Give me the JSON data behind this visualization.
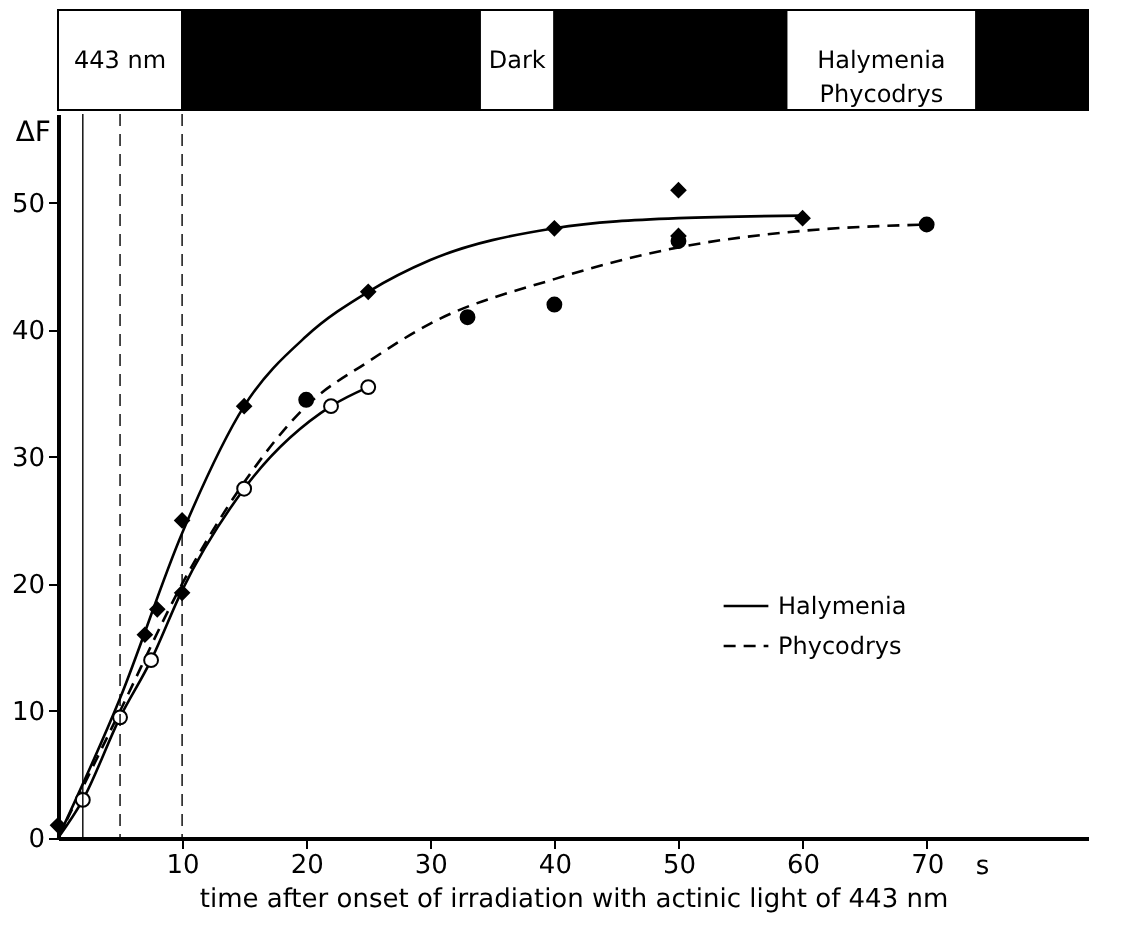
{
  "chart_data": [
    {
      "type": "bar",
      "orientation": "horizontal",
      "stacked": true,
      "categories": [
        null
      ],
      "xlim": [
        0,
        83
      ],
      "tick_labels": false,
      "series": [
        {
          "name": "443 nm",
          "color": "#ffffff",
          "values": [
            10
          ]
        },
        {
          "color": "#000000",
          "values": [
            24
          ]
        },
        {
          "name": "Dark",
          "color": "#ffffff",
          "values": [
            6
          ]
        },
        {
          "color": "#000000",
          "values": [
            18.7
          ]
        },
        {
          "name": "Halymenia\nPhycodrys",
          "color": "#ffffff",
          "values": [
            15.3
          ]
        },
        {
          "color": "#000000",
          "values": [
            9
          ]
        }
      ]
    },
    {
      "type": "line",
      "xlabel": "time after onset of irradiation with actinic light of 443 nm",
      "ylabel": "ΔF",
      "xlim": [
        0,
        83
      ],
      "ylim": [
        0,
        57
      ],
      "xticks": [
        10,
        20,
        30,
        40,
        50,
        60,
        70
      ],
      "yticks": [
        0,
        10,
        20,
        30,
        40,
        50
      ],
      "grid": false,
      "legend": "bottom right",
      "annotations": [
        "s"
      ],
      "ref_lines": [
        {
          "axis": "x",
          "value": 2,
          "line_style": "solid",
          "color": "#000000"
        },
        {
          "axis": "x",
          "value": 5,
          "line_style": "dashed",
          "color": "#000000"
        },
        {
          "axis": "x",
          "value": 10,
          "line_style": "dashed",
          "color": "#000000"
        }
      ],
      "series": [
        {
          "name": "Halymenia",
          "type": "line",
          "line_style": "solid",
          "marker": "none",
          "color": "#000000",
          "x": [
            0,
            5,
            10,
            15,
            20,
            25,
            30,
            40,
            50,
            60
          ],
          "values": [
            0,
            11,
            24,
            34,
            39.5,
            43,
            45.5,
            48,
            48.8,
            49
          ]
        },
        {
          "name": "Phycodrys",
          "type": "line",
          "line_style": "dashed",
          "marker": "none",
          "color": "#000000",
          "x": [
            0,
            5,
            10,
            15,
            20,
            25,
            30,
            40,
            50,
            60,
            70
          ],
          "values": [
            0,
            10,
            20,
            28,
            34,
            37.5,
            40.5,
            44,
            46.5,
            47.8,
            48.3
          ]
        },
        {
          "type": "line",
          "line_style": "solid",
          "marker": "none",
          "color": "#000000",
          "x": [
            0,
            2,
            5,
            7.5,
            10,
            15,
            22,
            25
          ],
          "values": [
            0,
            3,
            9.5,
            14,
            19.5,
            27.5,
            34,
            35.5
          ]
        },
        {
          "type": "scatter",
          "marker": "diamond",
          "color": "#000000",
          "x": [
            0,
            7,
            8,
            10,
            10,
            15,
            25,
            40,
            50,
            50,
            60
          ],
          "values": [
            1,
            16,
            18,
            25,
            19.3,
            34,
            43,
            48,
            51,
            47.4,
            48.8
          ]
        },
        {
          "type": "scatter",
          "marker": "circle",
          "color": "#000000",
          "x": [
            20,
            33,
            40,
            50,
            70
          ],
          "values": [
            34.5,
            41,
            42,
            47,
            48.3
          ]
        },
        {
          "type": "scatter",
          "marker": "circle",
          "color": "#ffffff",
          "x": [
            2,
            5,
            7.5,
            15,
            22,
            25
          ],
          "values": [
            3,
            9.5,
            14,
            27.5,
            34,
            35.5
          ]
        }
      ]
    }
  ]
}
